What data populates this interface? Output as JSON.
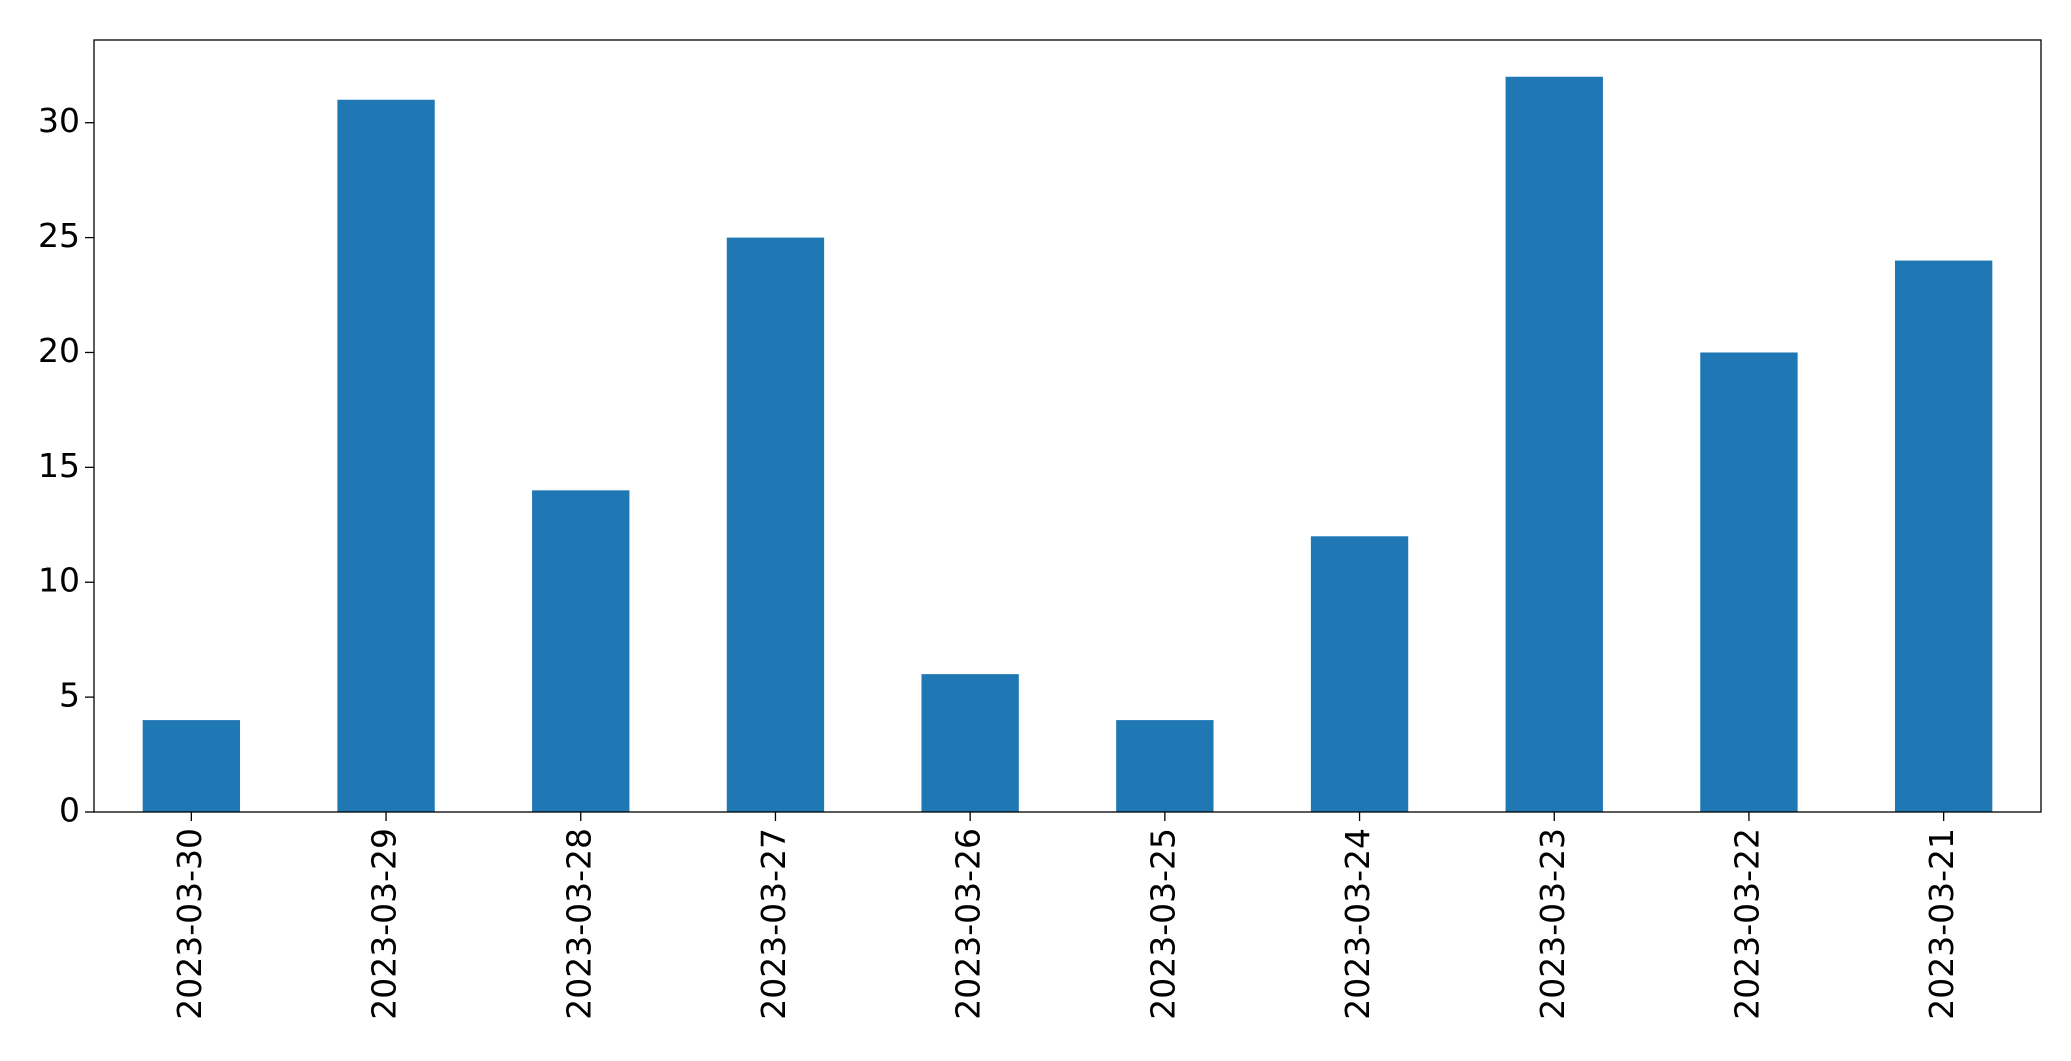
{
  "chart_data": {
    "type": "bar",
    "categories": [
      "2023-03-30",
      "2023-03-29",
      "2023-03-28",
      "2023-03-27",
      "2023-03-26",
      "2023-03-25",
      "2023-03-24",
      "2023-03-23",
      "2023-03-22",
      "2023-03-21"
    ],
    "values": [
      4,
      31,
      14,
      25,
      6,
      4,
      12,
      32,
      20,
      24
    ],
    "color": "#1f77b4",
    "ylim": [
      0,
      33.6
    ],
    "yticks": [
      0,
      5,
      10,
      15,
      20,
      25,
      30
    ],
    "grid": false
  }
}
